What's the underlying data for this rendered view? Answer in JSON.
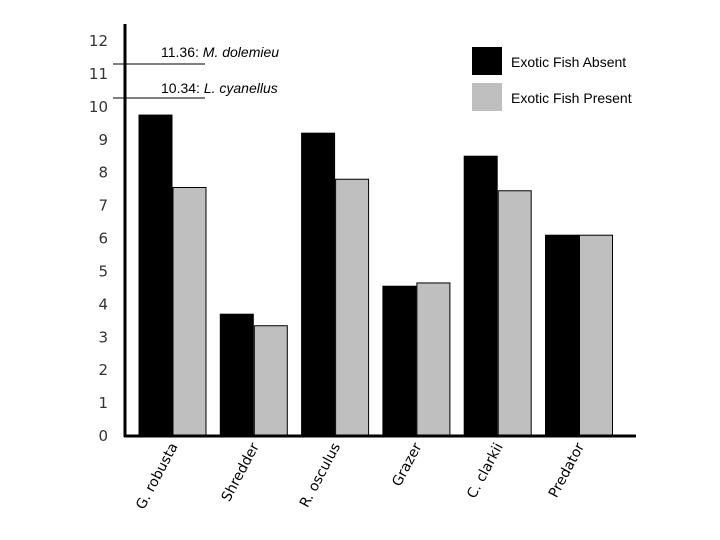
{
  "chart_data": {
    "type": "bar",
    "categories": [
      "G. robusta",
      "Shredder",
      "R. osculus",
      "Grazer",
      "C. clarkii",
      "Predator"
    ],
    "series": [
      {
        "name": "Exotic Fish Absent",
        "color": "#000000",
        "values": [
          9.75,
          3.7,
          9.2,
          4.55,
          8.5,
          6.1
        ]
      },
      {
        "name": "Exotic Fish Present",
        "color": "#bfbfbf",
        "values": [
          7.55,
          3.35,
          7.8,
          4.65,
          7.45,
          6.1
        ]
      }
    ],
    "yticks": [
      "0",
      "1",
      "2",
      "3",
      "4",
      "5",
      "6",
      "7",
      "8",
      "9",
      "10",
      "11",
      "12"
    ],
    "ylim": [
      0,
      12
    ],
    "legend_position": "top-right",
    "grid": false,
    "annotations": [
      {
        "id": "annot-dolomieu",
        "value": 11.36,
        "label_value": "11.36",
        "label_sep": ": ",
        "label_species": "M. dolemieu"
      },
      {
        "id": "annot-cyanellus",
        "value": 10.34,
        "label_value": "10.34",
        "label_sep": ": ",
        "label_species": "L. cyanellus"
      }
    ]
  }
}
